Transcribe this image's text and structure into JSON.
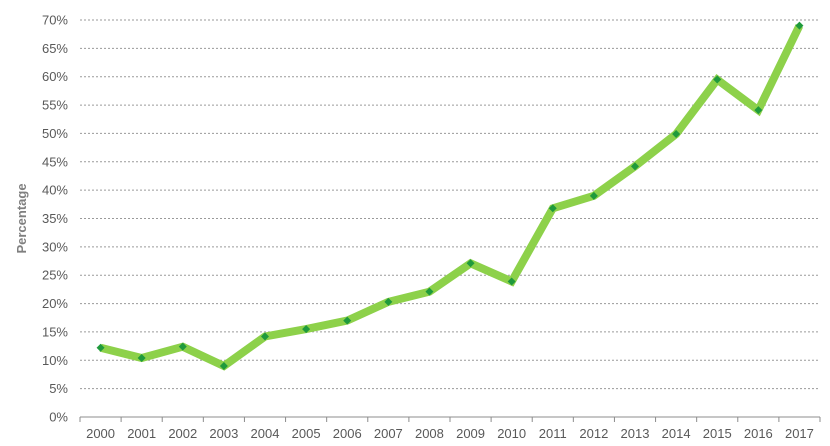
{
  "chart_data": {
    "type": "line",
    "title": "",
    "xlabel": "",
    "ylabel": "Percentage",
    "categories": [
      "2000",
      "2001",
      "2002",
      "2003",
      "2004",
      "2005",
      "2006",
      "2007",
      "2008",
      "2009",
      "2010",
      "2011",
      "2012",
      "2013",
      "2014",
      "2015",
      "2016",
      "2017"
    ],
    "series": [
      {
        "values": [
          12.2,
          10.4,
          12.4,
          9.0,
          14.2,
          15.5,
          17.0,
          20.3,
          22.1,
          27.1,
          23.9,
          36.8,
          39.0,
          44.2,
          49.9,
          59.5,
          54.1,
          69.0
        ]
      }
    ],
    "ylim": [
      0,
      70
    ],
    "yticks": [
      0,
      5,
      10,
      15,
      20,
      25,
      30,
      35,
      40,
      45,
      50,
      55,
      60,
      65,
      70
    ],
    "ytick_labels": [
      "0%",
      "5%",
      "10%",
      "15%",
      "20%",
      "25%",
      "30%",
      "35%",
      "40%",
      "45%",
      "50%",
      "55%",
      "60%",
      "65%",
      "70%"
    ],
    "grid": true,
    "legend": "none",
    "colors": {
      "line": "#8dd14a",
      "marker": "#1f9a3c",
      "grid": "#9a9a9a",
      "text": "#595959",
      "axis_title": "#7f7f7f"
    }
  }
}
